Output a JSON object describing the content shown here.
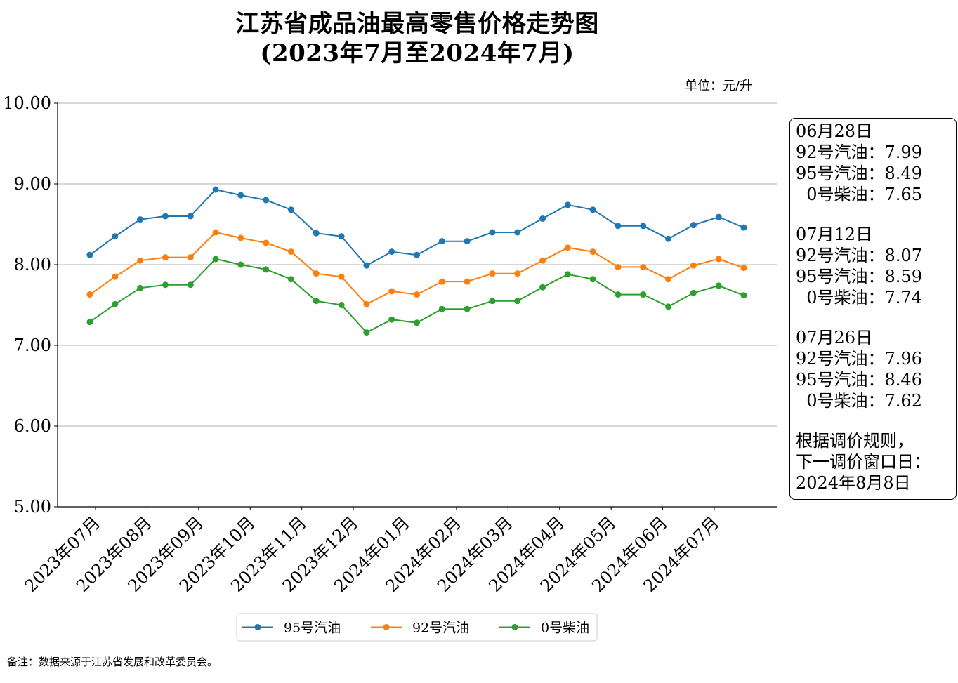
{
  "title_line1": "江苏省成品油最高零售价格走势图",
  "title_line2": "(2023年7月至2024年7月)",
  "unit_label": "单位：元/升",
  "footnote": "备注：数据来源于江苏省发展和改革委员会。",
  "info_box": {
    "blocks": [
      {
        "date": "06月28日",
        "lines": [
          "92号汽油：7.99",
          "95号汽油：8.49",
          "  0号柴油：7.65"
        ]
      },
      {
        "date": "07月12日",
        "lines": [
          "92号汽油：8.07",
          "95号汽油：8.59",
          "  0号柴油：7.74"
        ]
      },
      {
        "date": "07月26日",
        "lines": [
          "92号汽油：7.96",
          "95号汽油：8.46",
          "  0号柴油：7.62"
        ]
      }
    ],
    "rule_lines": [
      "根据调价规则，",
      "下一调价窗口日：",
      "2024年8月8日"
    ]
  },
  "chart_data": {
    "type": "line",
    "ylim": [
      5.0,
      10.0
    ],
    "yticks": [
      "5.00",
      "6.00",
      "7.00",
      "8.00",
      "9.00",
      "10.00"
    ],
    "xtick_labels": [
      "2023年07月",
      "2023年08月",
      "2023年09月",
      "2023年10月",
      "2023年11月",
      "2023年12月",
      "2024年01月",
      "2024年02月",
      "2024年03月",
      "2024年04月",
      "2024年05月",
      "2024年06月",
      "2024年07月"
    ],
    "grid": "horizontal",
    "legend_position": "bottom-center",
    "series": [
      {
        "name": "95号汽油",
        "color": "#1f77b4",
        "values": [
          8.12,
          8.35,
          8.56,
          8.6,
          8.6,
          8.93,
          8.86,
          8.8,
          8.68,
          8.39,
          8.35,
          7.99,
          8.16,
          8.12,
          8.29,
          8.29,
          8.4,
          8.4,
          8.57,
          8.74,
          8.68,
          8.48,
          8.48,
          8.32,
          8.49,
          8.59,
          8.46
        ]
      },
      {
        "name": "92号汽油",
        "color": "#ff7f0e",
        "values": [
          7.63,
          7.85,
          8.05,
          8.09,
          8.09,
          8.4,
          8.33,
          8.27,
          8.16,
          7.89,
          7.85,
          7.51,
          7.67,
          7.63,
          7.79,
          7.79,
          7.89,
          7.89,
          8.05,
          8.21,
          8.16,
          7.97,
          7.97,
          7.82,
          7.99,
          8.07,
          7.96
        ]
      },
      {
        "name": "0号柴油",
        "color": "#2ca02c",
        "values": [
          7.29,
          7.51,
          7.71,
          7.75,
          7.75,
          8.07,
          8.0,
          7.94,
          7.82,
          7.55,
          7.5,
          7.16,
          7.32,
          7.28,
          7.45,
          7.45,
          7.55,
          7.55,
          7.72,
          7.88,
          7.82,
          7.63,
          7.63,
          7.48,
          7.65,
          7.74,
          7.62
        ]
      }
    ]
  }
}
